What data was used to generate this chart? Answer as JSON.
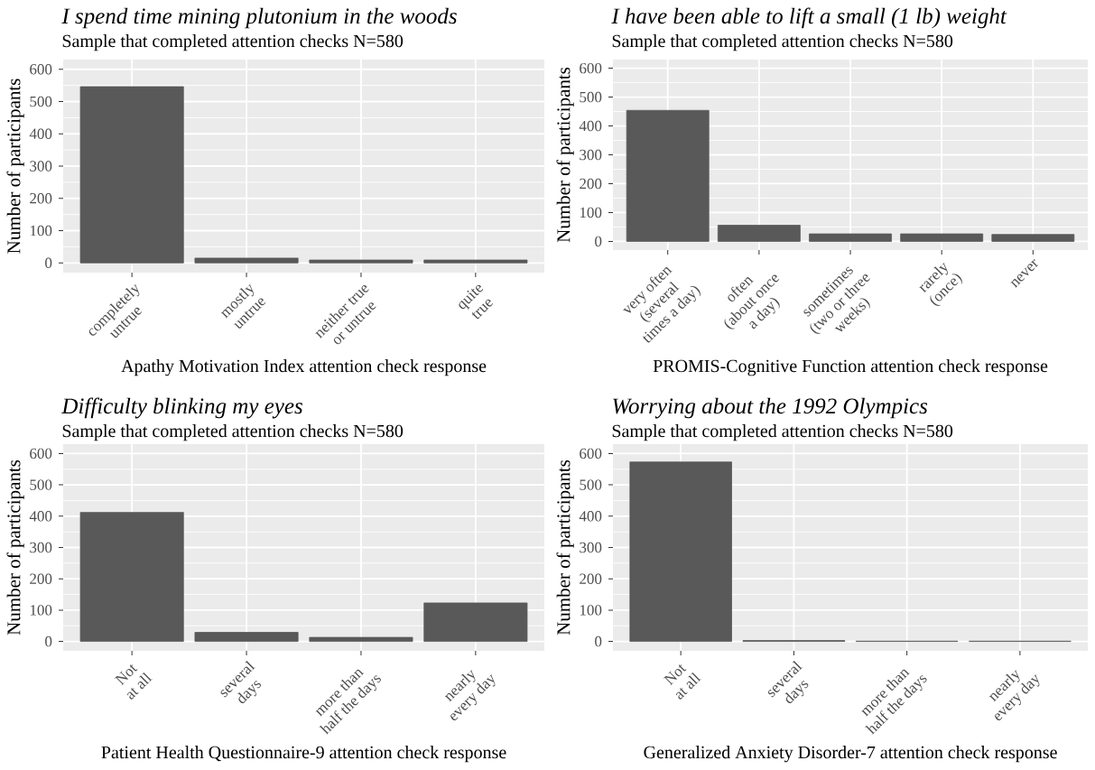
{
  "chart_data": [
    {
      "type": "bar",
      "title": "I spend time mining plutonium in the woods",
      "subtitle": "Sample that completed attention checks N=580",
      "xlabel": "Apathy Motivation Index attention check response",
      "ylabel": "Number of participants",
      "categories": [
        "completely\nuntrue",
        "mostly\nuntrue",
        "neither true\nor untrue",
        "quite\ntrue"
      ],
      "values": [
        546,
        15,
        9,
        9
      ],
      "color": "#595959",
      "ylim": [
        -30,
        630
      ],
      "yticks": [
        0,
        100,
        200,
        300,
        400,
        500,
        600
      ],
      "grid": true
    },
    {
      "type": "bar",
      "title": "I have been able to lift a small (1 lb) weight",
      "subtitle": "Sample that completed attention checks N=580",
      "xlabel": "PROMIS-Cognitive Function attention check response",
      "ylabel": "Number of participants",
      "categories": [
        "very often\n(several\ntimes a day)",
        "often\n(about once\na day)",
        "sometimes\n(two or three\nweeks)",
        "rarely\n(once)",
        "never"
      ],
      "values": [
        454,
        56,
        26,
        26,
        24
      ],
      "color": "#595959",
      "ylim": [
        -30,
        630
      ],
      "yticks": [
        0,
        100,
        200,
        300,
        400,
        500,
        600
      ],
      "grid": true
    },
    {
      "type": "bar",
      "title": "Difficulty blinking my eyes",
      "subtitle": "Sample that completed attention checks N=580",
      "xlabel": "Patient Health Questionnaire-9 attention check response",
      "ylabel": "Number of participants",
      "categories": [
        "Not\nat all",
        "several\ndays",
        "more than\nhalf the days",
        "nearly\nevery day"
      ],
      "values": [
        412,
        29,
        13,
        123
      ],
      "color": "#595959",
      "ylim": [
        -30,
        630
      ],
      "yticks": [
        0,
        100,
        200,
        300,
        400,
        500,
        600
      ],
      "grid": true
    },
    {
      "type": "bar",
      "title": "Worrying about the 1992 Olympics",
      "subtitle": "Sample that completed attention checks N=580",
      "xlabel": "Generalized Anxiety Disorder-7 attention check response",
      "ylabel": "Number of participants",
      "categories": [
        "Not\nat all",
        "several\ndays",
        "more than\nhalf the days",
        "nearly\nevery day"
      ],
      "values": [
        573,
        3,
        1,
        1
      ],
      "color": "#595959",
      "ylim": [
        -30,
        630
      ],
      "yticks": [
        0,
        100,
        200,
        300,
        400,
        500,
        600
      ],
      "grid": true
    }
  ]
}
